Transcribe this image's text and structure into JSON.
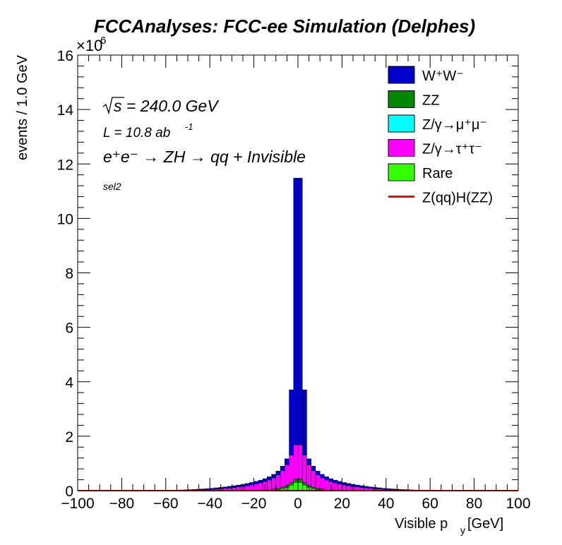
{
  "chart_data": {
    "type": "bar",
    "title": "FCCAnalyses: FCC-ee Simulation (Delphes)",
    "xlabel_main": "Visible p",
    "xlabel_sub": "y",
    "xlabel_unit": " [GeV]",
    "ylabel": "events / 1.0 GeV",
    "y_exponent_base": "×10",
    "y_exponent_power": "6",
    "xlim": [
      -100,
      100
    ],
    "ylim": [
      0,
      16
    ],
    "x_ticks": [
      "−100",
      "−80",
      "−60",
      "−40",
      "−20",
      "0",
      "20",
      "40",
      "60",
      "80",
      "100"
    ],
    "y_ticks": [
      "0",
      "2",
      "4",
      "6",
      "8",
      "10",
      "12",
      "14",
      "16"
    ],
    "stacked": true,
    "annotations": {
      "sqrt_s": "s = 240.0 GeV",
      "lumi_main": "L = 10.8 ab",
      "lumi_power": "-1",
      "process": "e⁺e⁻ → ZH → qq + Invisible",
      "selection": "sel2"
    },
    "legend": [
      {
        "label": "W⁺W⁻",
        "color": "#0000cc",
        "kind": "fill"
      },
      {
        "label": "ZZ",
        "color": "#008800",
        "kind": "fill"
      },
      {
        "label": "Z/γ→μ⁺μ⁻",
        "color": "#00ffff",
        "kind": "fill"
      },
      {
        "label": "Z/γ→τ⁺τ⁻",
        "color": "#ff00ff",
        "kind": "fill"
      },
      {
        "label": "Rare",
        "color": "#33ff00",
        "kind": "fill"
      },
      {
        "label": "Z(qq)H(ZZ)",
        "color": "#ff0000",
        "kind": "line"
      }
    ],
    "legend_position": "top-right",
    "x": [
      -99,
      -97,
      -95,
      -93,
      -91,
      -89,
      -87,
      -85,
      -83,
      -81,
      -79,
      -77,
      -75,
      -73,
      -71,
      -69,
      -67,
      -65,
      -63,
      -61,
      -59,
      -57,
      -55,
      -53,
      -51,
      -49,
      -47,
      -45,
      -43,
      -41,
      -39,
      -37,
      -35,
      -33,
      -31,
      -29,
      -27,
      -25,
      -23,
      -21,
      -19,
      -17,
      -15,
      -13,
      -11,
      -9,
      -7,
      -5,
      -3,
      -1,
      1,
      3,
      5,
      7,
      9,
      11,
      13,
      15,
      17,
      19,
      21,
      23,
      25,
      27,
      29,
      31,
      33,
      35,
      37,
      39,
      41,
      43,
      45,
      47,
      49,
      51,
      53,
      55,
      57,
      59,
      61,
      63,
      65,
      67,
      69,
      71,
      73,
      75,
      77,
      79,
      81,
      83,
      85,
      87,
      89,
      91,
      93,
      95,
      97,
      99
    ],
    "bin_width": 2,
    "series": [
      {
        "name": "Rare",
        "color": "#33ff00",
        "values": [
          0,
          0,
          0,
          0,
          0,
          0,
          0,
          0,
          0,
          0,
          0,
          0,
          0,
          0,
          0,
          0,
          0,
          0,
          0,
          0,
          0,
          0,
          0,
          0,
          0,
          0,
          0,
          0,
          0,
          0,
          0,
          0,
          0,
          0.001,
          0.001,
          0.002,
          0.002,
          0.003,
          0.004,
          0.005,
          0.006,
          0.008,
          0.011,
          0.016,
          0.024,
          0.04,
          0.07,
          0.12,
          0.2,
          0.3,
          0.3,
          0.2,
          0.12,
          0.07,
          0.04,
          0.024,
          0.016,
          0.011,
          0.008,
          0.006,
          0.005,
          0.004,
          0.003,
          0.002,
          0.002,
          0.001,
          0.001,
          0,
          0,
          0,
          0,
          0,
          0,
          0,
          0,
          0,
          0,
          0,
          0,
          0,
          0,
          0,
          0,
          0,
          0,
          0,
          0,
          0,
          0,
          0,
          0,
          0,
          0,
          0,
          0,
          0,
          0,
          0,
          0,
          0
        ]
      },
      {
        "name": "ZZ",
        "color": "#008800",
        "values": [
          0,
          0,
          0,
          0,
          0,
          0,
          0,
          0,
          0,
          0,
          0,
          0,
          0,
          0,
          0,
          0,
          0,
          0,
          0,
          0,
          0,
          0,
          0,
          0,
          0,
          0,
          0,
          0,
          0,
          0.001,
          0.001,
          0.002,
          0.002,
          0.003,
          0.004,
          0.005,
          0.006,
          0.008,
          0.01,
          0.012,
          0.015,
          0.018,
          0.022,
          0.028,
          0.035,
          0.045,
          0.06,
          0.08,
          0.1,
          0.12,
          0.12,
          0.1,
          0.08,
          0.06,
          0.045,
          0.035,
          0.028,
          0.022,
          0.018,
          0.015,
          0.012,
          0.01,
          0.008,
          0.006,
          0.005,
          0.004,
          0.003,
          0.002,
          0.002,
          0.001,
          0.001,
          0,
          0,
          0,
          0,
          0,
          0,
          0,
          0,
          0,
          0,
          0,
          0,
          0,
          0,
          0,
          0,
          0,
          0,
          0,
          0,
          0,
          0,
          0,
          0,
          0,
          0,
          0,
          0,
          0
        ]
      },
      {
        "name": "Z/γ→μ⁺μ⁻",
        "color": "#00ffff",
        "values": [
          0,
          0,
          0,
          0,
          0,
          0,
          0,
          0,
          0,
          0,
          0,
          0,
          0,
          0,
          0,
          0,
          0,
          0,
          0,
          0,
          0,
          0,
          0,
          0,
          0,
          0,
          0,
          0,
          0,
          0,
          0,
          0,
          0,
          0,
          0,
          0,
          0,
          0,
          0,
          0,
          0,
          0,
          0,
          0,
          0,
          0,
          0,
          0,
          0.005,
          0.01,
          0.01,
          0.005,
          0,
          0,
          0,
          0,
          0,
          0,
          0,
          0,
          0,
          0,
          0,
          0,
          0,
          0,
          0,
          0,
          0,
          0,
          0,
          0,
          0,
          0,
          0,
          0,
          0,
          0,
          0,
          0,
          0,
          0,
          0,
          0,
          0,
          0,
          0,
          0,
          0,
          0,
          0,
          0,
          0,
          0,
          0,
          0,
          0,
          0,
          0,
          0
        ]
      },
      {
        "name": "Z/γ→τ⁺τ⁻",
        "color": "#ff00ff",
        "values": [
          0,
          0,
          0,
          0,
          0,
          0,
          0,
          0,
          0,
          0,
          0,
          0,
          0,
          0,
          0,
          0,
          0,
          0.001,
          0.002,
          0.003,
          0.004,
          0.005,
          0.007,
          0.009,
          0.012,
          0.015,
          0.019,
          0.024,
          0.03,
          0.037,
          0.045,
          0.055,
          0.066,
          0.078,
          0.092,
          0.108,
          0.126,
          0.146,
          0.168,
          0.193,
          0.222,
          0.256,
          0.296,
          0.346,
          0.41,
          0.49,
          0.6,
          0.75,
          1.0,
          1.25,
          1.25,
          1.0,
          0.75,
          0.6,
          0.49,
          0.41,
          0.346,
          0.296,
          0.256,
          0.222,
          0.193,
          0.168,
          0.146,
          0.126,
          0.108,
          0.092,
          0.078,
          0.066,
          0.055,
          0.045,
          0.037,
          0.03,
          0.024,
          0.019,
          0.015,
          0.012,
          0.009,
          0.007,
          0.005,
          0.004,
          0.003,
          0.002,
          0.001,
          0,
          0,
          0,
          0,
          0,
          0,
          0,
          0,
          0,
          0,
          0,
          0,
          0,
          0,
          0,
          0,
          0
        ]
      },
      {
        "name": "W⁺W⁻",
        "color": "#0000cc",
        "values": [
          0,
          0,
          0,
          0,
          0,
          0,
          0,
          0,
          0,
          0,
          0,
          0,
          0.001,
          0.001,
          0.002,
          0.003,
          0.004,
          0.005,
          0.006,
          0.008,
          0.01,
          0.012,
          0.014,
          0.017,
          0.02,
          0.023,
          0.026,
          0.03,
          0.034,
          0.038,
          0.042,
          0.047,
          0.052,
          0.057,
          0.062,
          0.067,
          0.072,
          0.078,
          0.084,
          0.09,
          0.097,
          0.104,
          0.112,
          0.12,
          0.13,
          0.145,
          0.17,
          0.22,
          2.4,
          9.8,
          9.8,
          2.4,
          0.22,
          0.17,
          0.145,
          0.13,
          0.12,
          0.112,
          0.104,
          0.097,
          0.09,
          0.084,
          0.078,
          0.072,
          0.067,
          0.062,
          0.057,
          0.052,
          0.047,
          0.042,
          0.038,
          0.034,
          0.03,
          0.026,
          0.023,
          0.02,
          0.017,
          0.014,
          0.012,
          0.01,
          0.008,
          0.006,
          0.005,
          0.004,
          0.003,
          0.002,
          0.001,
          0.001,
          0,
          0,
          0,
          0,
          0,
          0,
          0,
          0,
          0,
          0,
          0,
          0
        ]
      },
      {
        "name": "Z(qq)H(ZZ)",
        "color": "#ff0000",
        "kind": "line",
        "values": [
          0,
          0,
          0,
          0,
          0,
          0,
          0,
          0,
          0,
          0,
          0,
          0,
          0,
          0,
          0,
          0,
          0,
          0,
          0,
          0,
          0,
          0,
          0,
          0,
          0,
          0,
          0,
          0,
          0,
          0,
          0,
          0,
          0,
          0,
          0,
          0,
          0,
          0,
          0,
          0,
          0,
          0,
          0,
          0,
          0,
          0,
          0,
          0,
          0,
          0,
          0,
          0,
          0,
          0,
          0,
          0,
          0,
          0,
          0,
          0,
          0,
          0,
          0,
          0,
          0,
          0,
          0,
          0,
          0,
          0,
          0,
          0,
          0,
          0,
          0,
          0,
          0,
          0,
          0,
          0,
          0,
          0,
          0,
          0,
          0,
          0,
          0,
          0,
          0,
          0,
          0,
          0,
          0,
          0,
          0,
          0,
          0,
          0,
          0,
          0
        ]
      }
    ]
  }
}
